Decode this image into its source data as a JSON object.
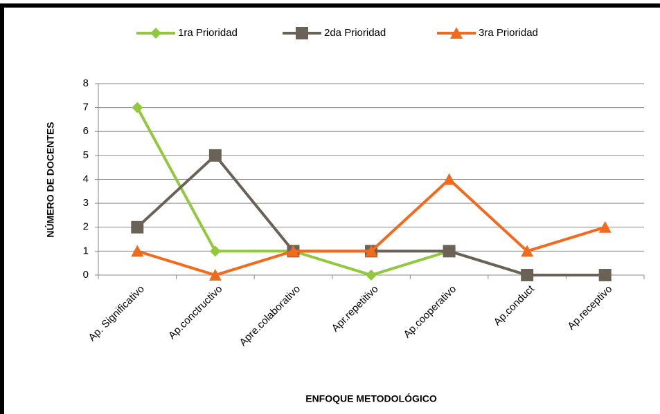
{
  "chart_data": {
    "type": "line",
    "xlabel": "ENFOQUE METODOLÓGICO",
    "ylabel": "NÚMERO DE DOCENTES",
    "categories": [
      "Ap. Significativo",
      "Ap.conctructivo",
      "Apre.colaborativo",
      "Apr.repetitivo",
      "Ap.cooperativo",
      "Ap.conduct",
      "Ap.receptivo"
    ],
    "series": [
      {
        "name": "1ra Prioridad",
        "color": "#92c83e",
        "marker": "diamond",
        "values": [
          7,
          1,
          1,
          0,
          1,
          0,
          0
        ]
      },
      {
        "name": "2da Prioridad",
        "color": "#6b6257",
        "marker": "square",
        "values": [
          2,
          5,
          1,
          1,
          1,
          0,
          0
        ]
      },
      {
        "name": "3ra Prioridad",
        "color": "#f26a1b",
        "marker": "triangle",
        "values": [
          1,
          0,
          1,
          1,
          4,
          1,
          2
        ]
      }
    ],
    "ylim": [
      0,
      8
    ],
    "yticks": [
      0,
      1,
      2,
      3,
      4,
      5,
      6,
      7,
      8
    ],
    "grid": true,
    "legend": "top"
  }
}
